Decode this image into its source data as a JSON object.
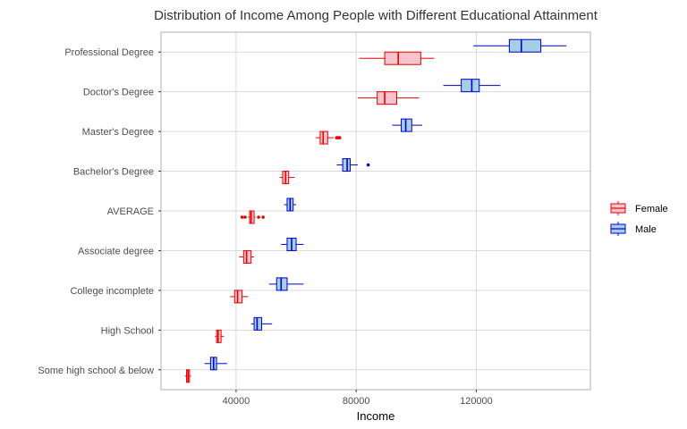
{
  "chart_data": {
    "type": "boxplot",
    "title": "Distribution of Income Among People with Different Educational Attainment",
    "xlabel": "Income",
    "ylabel": "",
    "xlim": [
      15000,
      158000
    ],
    "x_ticks": [
      40000,
      80000,
      120000
    ],
    "categories": [
      "Professional Degree",
      "Doctor's Degree",
      "Master's Degree",
      "Bachelor's Degree",
      "AVERAGE",
      "Associate degree",
      "College incomplete",
      "High School",
      "Some high school & below"
    ],
    "grid": true,
    "legend_position": "right",
    "series": [
      {
        "name": "Female",
        "fill": "#f7c3cc",
        "stroke": "#e60000",
        "boxes": [
          {
            "category": "Professional Degree",
            "whisker_low": 81000,
            "q1": 89500,
            "median": 94000,
            "q3": 101500,
            "whisker_high": 106000,
            "outliers": []
          },
          {
            "category": "Doctor's Degree",
            "whisker_low": 80500,
            "q1": 87000,
            "median": 89500,
            "q3": 93500,
            "whisker_high": 101000,
            "outliers": []
          },
          {
            "category": "Master's Degree",
            "whisker_low": 66500,
            "q1": 68000,
            "median": 69000,
            "q3": 70500,
            "whisker_high": 72500,
            "outliers": [
              73500,
              74000,
              74500
            ]
          },
          {
            "category": "Bachelor's Degree",
            "whisker_low": 54500,
            "q1": 55500,
            "median": 56500,
            "q3": 57500,
            "whisker_high": 59500,
            "outliers": []
          },
          {
            "category": "AVERAGE",
            "whisker_low": 44000,
            "q1": 44500,
            "median": 45000,
            "q3": 46000,
            "whisker_high": 46500,
            "outliers": [
              42000,
              43000,
              47500,
              49000
            ]
          },
          {
            "category": "Associate degree",
            "whisker_low": 41000,
            "q1": 42500,
            "median": 43500,
            "q3": 45000,
            "whisker_high": 46000,
            "outliers": []
          },
          {
            "category": "College incomplete",
            "whisker_low": 38000,
            "q1": 39500,
            "median": 40500,
            "q3": 42000,
            "whisker_high": 44000,
            "outliers": []
          },
          {
            "category": "High School",
            "whisker_low": 33000,
            "q1": 33500,
            "median": 34000,
            "q3": 35000,
            "whisker_high": 36000,
            "outliers": []
          },
          {
            "category": "Some high school & below",
            "whisker_low": 23000,
            "q1": 23500,
            "median": 24000,
            "q3": 24500,
            "whisker_high": 25000,
            "outliers": []
          }
        ]
      },
      {
        "name": "Male",
        "fill": "#a6cfe6",
        "stroke": "#0000cc",
        "boxes": [
          {
            "category": "Professional Degree",
            "whisker_low": 119000,
            "q1": 131000,
            "median": 135000,
            "q3": 141500,
            "whisker_high": 150000,
            "outliers": []
          },
          {
            "category": "Doctor's Degree",
            "whisker_low": 109000,
            "q1": 115000,
            "median": 118500,
            "q3": 121000,
            "whisker_high": 128000,
            "outliers": []
          },
          {
            "category": "Master's Degree",
            "whisker_low": 92000,
            "q1": 95000,
            "median": 96500,
            "q3": 98500,
            "whisker_high": 102000,
            "outliers": []
          },
          {
            "category": "Bachelor's Degree",
            "whisker_low": 73500,
            "q1": 75500,
            "median": 77000,
            "q3": 78000,
            "whisker_high": 80500,
            "outliers": [
              84000
            ]
          },
          {
            "category": "AVERAGE",
            "whisker_low": 56000,
            "q1": 57000,
            "median": 58000,
            "q3": 59000,
            "whisker_high": 60000,
            "outliers": []
          },
          {
            "category": "Associate degree",
            "whisker_low": 55000,
            "q1": 57000,
            "median": 58500,
            "q3": 60000,
            "whisker_high": 62500,
            "outliers": []
          },
          {
            "category": "College incomplete",
            "whisker_low": 51000,
            "q1": 53500,
            "median": 55000,
            "q3": 57000,
            "whisker_high": 62500,
            "outliers": []
          },
          {
            "category": "High School",
            "whisker_low": 45000,
            "q1": 46000,
            "median": 47000,
            "q3": 48500,
            "whisker_high": 52000,
            "outliers": []
          },
          {
            "category": "Some high school & below",
            "whisker_low": 29500,
            "q1": 31500,
            "median": 32500,
            "q3": 33500,
            "whisker_high": 37000,
            "outliers": []
          }
        ]
      }
    ]
  },
  "colors": {
    "grid": "#d9d9d9",
    "panel_border": "#b3b3b3",
    "background": "#ffffff"
  }
}
